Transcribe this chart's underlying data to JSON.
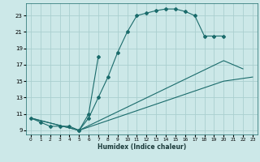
{
  "xlabel": "Humidex (Indice chaleur)",
  "xlim": [
    -0.5,
    23.5
  ],
  "ylim": [
    8.5,
    24.5
  ],
  "yticks": [
    9,
    11,
    13,
    15,
    17,
    19,
    21,
    23
  ],
  "xticks": [
    0,
    1,
    2,
    3,
    4,
    5,
    6,
    7,
    8,
    9,
    10,
    11,
    12,
    13,
    14,
    15,
    16,
    17,
    18,
    19,
    20,
    21,
    22,
    23
  ],
  "bg_color": "#cce8e8",
  "grid_color": "#aacfcf",
  "line_color": "#1a6b6b",
  "lines": [
    {
      "x": [
        0,
        1,
        2,
        3,
        4,
        5,
        6,
        7,
        8,
        9,
        10,
        11,
        12,
        13,
        14,
        15,
        16,
        17,
        18,
        19,
        20
      ],
      "y": [
        10.5,
        10.0,
        9.5,
        9.5,
        9.5,
        9.0,
        10.5,
        13.0,
        15.5,
        18.5,
        21.0,
        23.0,
        23.3,
        23.6,
        23.8,
        23.8,
        23.5,
        23.0,
        20.5,
        20.5,
        20.5
      ],
      "markers": true
    },
    {
      "x": [
        5,
        6,
        7
      ],
      "y": [
        9.0,
        11.0,
        18.0
      ],
      "markers": true
    },
    {
      "x": [
        0,
        5,
        20,
        22
      ],
      "y": [
        10.5,
        9.0,
        17.5,
        16.5
      ],
      "markers": false
    },
    {
      "x": [
        0,
        5,
        20,
        23
      ],
      "y": [
        10.5,
        9.0,
        15.0,
        15.5
      ],
      "markers": false
    }
  ]
}
